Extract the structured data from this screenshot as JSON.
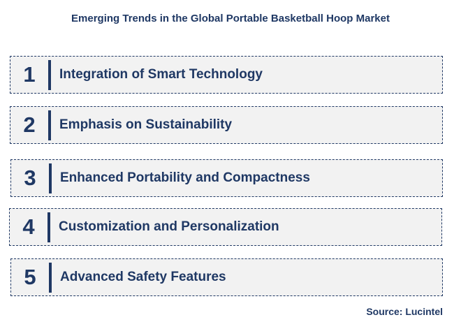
{
  "title": "Emerging Trends in the Global Portable Basketball Hoop Market",
  "trends": [
    {
      "number": "1",
      "label": "Integration of Smart Technology"
    },
    {
      "number": "2",
      "label": "Emphasis on Sustainability"
    },
    {
      "number": "3",
      "label": "Enhanced Portability and Compactness"
    },
    {
      "number": "4",
      "label": "Customization and Personalization"
    },
    {
      "number": "5",
      "label": "Advanced Safety Features"
    }
  ],
  "source": "Source: Lucintel",
  "colors": {
    "text": "#1f3864",
    "box_fill": "#f2f2f2",
    "box_border": "#1f3864"
  }
}
